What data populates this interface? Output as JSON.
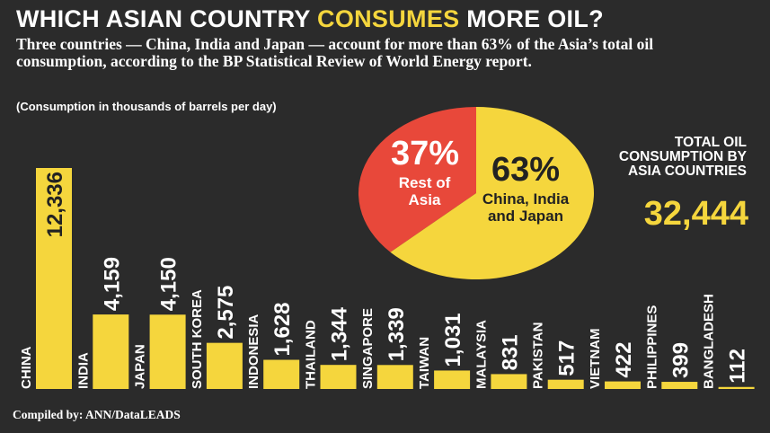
{
  "header": {
    "title_start": "WHICH ASIAN COUNTRY",
    "title_highlight": "CONSUMES",
    "title_end": "MORE OIL?",
    "subtitle": "Three countries — China, India and Japan — account for more than 63% of the Asia’s total oil consumption, according to the BP Statistical Review of World Energy report.",
    "note": "(Consumption in thousands of barrels per day)"
  },
  "total_label": "TOTAL OIL CONSUMPTION BY ASIA COUNTRIES",
  "total": "32,444",
  "source": "Compiled by:  ANN/DataLEADS",
  "chart_data": [
    {
      "type": "bar",
      "color": "#f5d63d",
      "categories": [
        "CHINA",
        "INDIA",
        "JAPAN",
        "SOUTH KOREA",
        "INDONESIA",
        "THAILAND",
        "SINGAPORE",
        "TAIWAN",
        "MALAYSIA",
        "PAKISTAN",
        "VIETNAM",
        "PHILIPPINES",
        "BANGLADESH"
      ],
      "values": [
        12336,
        4159,
        4150,
        2575,
        1628,
        1344,
        1339,
        1031,
        831,
        517,
        422,
        399,
        112
      ],
      "value_labels": [
        "12,336",
        "4,159",
        "4,150",
        "2,575",
        "1,628",
        "1,344",
        "1,339",
        "1,031",
        "831",
        "517",
        "422",
        "399",
        "112"
      ]
    },
    {
      "type": "pie",
      "categories": [
        "Rest of Asia",
        "China, India and Japan"
      ],
      "values": [
        37,
        63
      ],
      "value_labels": [
        "37%",
        "63%"
      ],
      "colors": [
        "#e8483a",
        "#f5d63d"
      ]
    }
  ]
}
